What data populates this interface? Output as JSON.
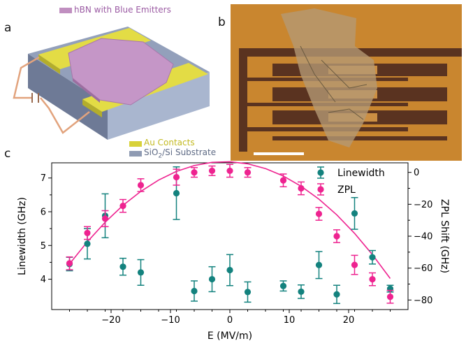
{
  "figure": {
    "panel_a": "a",
    "panel_b": "b",
    "panel_c": "c"
  },
  "schematic": {
    "hbn_legend": "hBN with Blue Emitters",
    "au_legend": "Au Contacts",
    "substrate_legend_prefix": "SiO",
    "substrate_legend_sub": "2",
    "substrate_legend_suffix": "/Si Substrate",
    "colors": {
      "hbn": "#c08fc0",
      "au": "#d8d23a",
      "substrate": "#8f9bb3"
    }
  },
  "micrograph": {
    "colors": {
      "background": "#c9862f",
      "electrode_dark": "#5a3320",
      "flake": "#b59a74",
      "scale_bar": "#ffffff"
    }
  },
  "chart_data": {
    "type": "scatter",
    "xlabel": "E (MV/m)",
    "ylabel_left": "Linewidth (GHz)",
    "ylabel_right": "ZPL Shift (GHz)",
    "xlim": [
      -30,
      30
    ],
    "ylim_left": [
      3.1,
      7.45
    ],
    "ylim_right": [
      -86,
      6
    ],
    "xticks": [
      -20,
      -10,
      0,
      10,
      20
    ],
    "yticks_left": [
      4,
      5,
      6,
      7
    ],
    "yticks_right": [
      0,
      -20,
      -40,
      -60,
      -80
    ],
    "minor_xticks": [
      -27,
      -24,
      -21,
      -18,
      -15,
      -12,
      -9,
      -6,
      -3,
      3,
      6,
      9,
      12,
      15,
      18,
      21,
      24,
      27
    ],
    "minor_yticks_left": [
      4.5,
      5.5,
      6.5
    ],
    "minor_yticks_right": [
      -10,
      -30,
      -50,
      -70
    ],
    "legend_position": "top-right",
    "series": [
      {
        "name": "Linewidth",
        "color": "#13827e",
        "axis": "left",
        "x": [
          -27,
          -24,
          -21,
          -18,
          -15,
          -9,
          -6,
          -3,
          0,
          3,
          9,
          12,
          15,
          18,
          21,
          24,
          27
        ],
        "y": [
          4.45,
          5.05,
          5.88,
          4.37,
          4.2,
          6.55,
          3.65,
          4.0,
          4.27,
          3.62,
          3.8,
          3.63,
          4.42,
          3.55,
          5.95,
          4.65,
          3.72
        ],
        "err": [
          0.2,
          0.45,
          0.65,
          0.25,
          0.38,
          0.78,
          0.3,
          0.37,
          0.46,
          0.3,
          0.15,
          0.2,
          0.4,
          0.27,
          0.47,
          0.2,
          0.1
        ]
      },
      {
        "name": "ZPL",
        "color": "#ee2390",
        "axis": "right",
        "x": [
          -27,
          -24,
          -21,
          -18,
          -15,
          -9,
          -6,
          -3,
          0,
          3,
          9,
          12,
          15,
          18,
          21,
          24,
          27
        ],
        "y": [
          -57,
          -38,
          -29,
          -21,
          -8,
          -3,
          0,
          1,
          1,
          0,
          -5,
          -10,
          -26,
          -40,
          -58,
          -67,
          -78
        ],
        "err": [
          4,
          4,
          5,
          4,
          4,
          5,
          3,
          3,
          4,
          3,
          4,
          4,
          4,
          4,
          6,
          4,
          4
        ]
      }
    ],
    "fit": {
      "axis": "right",
      "color": "#ee2390",
      "x": [
        -27,
        -24,
        -21,
        -18,
        -15,
        -12,
        -9,
        -6,
        -3,
        0,
        3,
        6,
        9,
        12,
        15,
        18,
        21,
        24,
        27
      ],
      "y": [
        -57.4,
        -43.5,
        -31.3,
        -20.7,
        -11.9,
        -4.8,
        0.6,
        4.3,
        6.3,
        6.7,
        5.4,
        2.4,
        -2.3,
        -8.7,
        -16.8,
        -26.6,
        -38.2,
        -51.5,
        -66.5
      ]
    }
  }
}
